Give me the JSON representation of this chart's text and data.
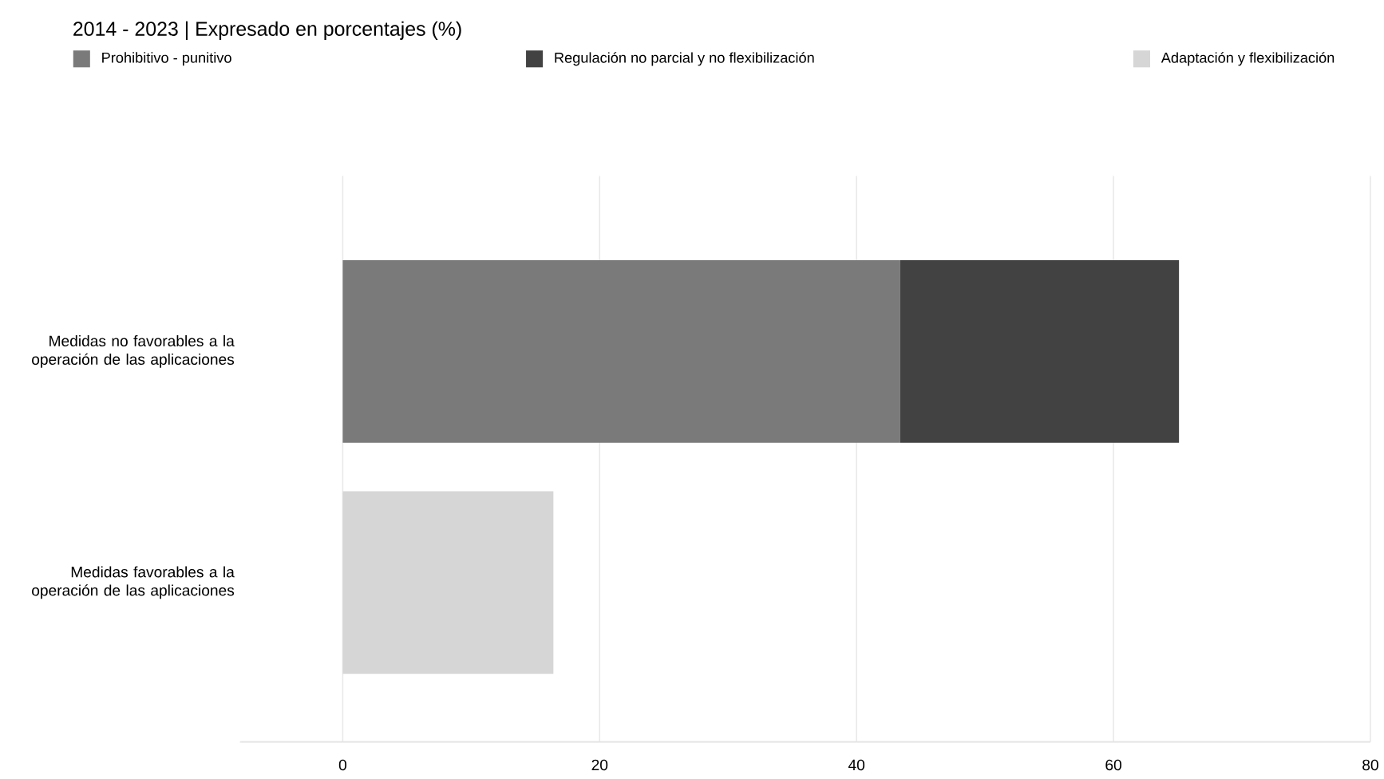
{
  "chart_data": {
    "type": "bar",
    "orientation": "horizontal",
    "stacked": true,
    "title": "2014 - 2023 | Expresado en porcentajes (%)",
    "categories": [
      "Medidas no favorables a la operación de las aplicaciones",
      "Medidas favorables a la operación de las aplicaciones"
    ],
    "series": [
      {
        "name": "Prohibitivo - punitivo",
        "color": "#7a7a7a",
        "values": [
          43.4,
          null
        ]
      },
      {
        "name": "Regulación no parcial y no flexibilización",
        "color": "#424242",
        "values": [
          21.7,
          null
        ]
      },
      {
        "name": "Adaptación y flexibilización",
        "color": "#d6d6d6",
        "values": [
          null,
          16.4
        ]
      }
    ],
    "xlim": [
      -8,
      80
    ],
    "xticks": [
      0,
      20,
      40,
      60,
      80
    ],
    "grid": "x",
    "legend": "top"
  }
}
